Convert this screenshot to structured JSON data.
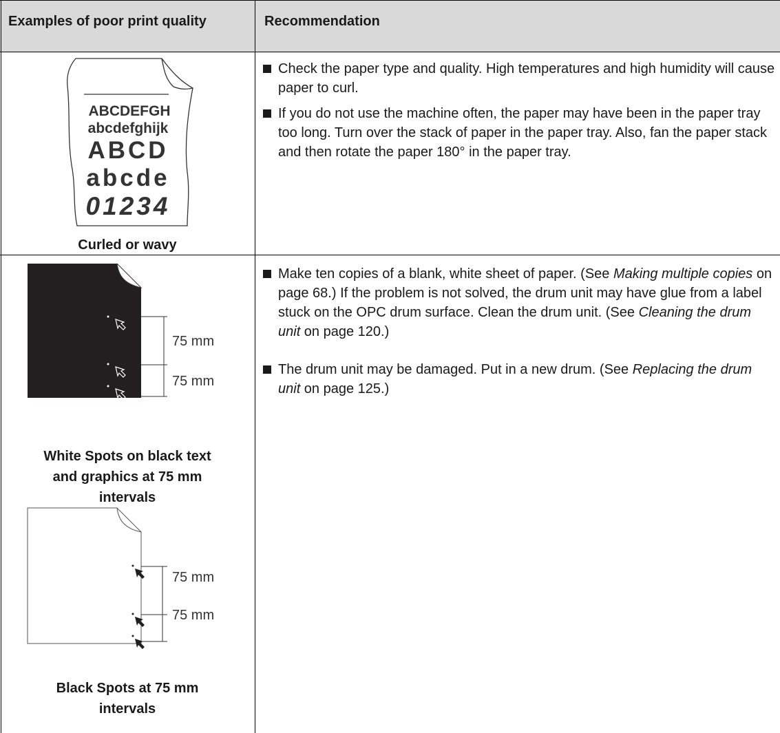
{
  "table": {
    "headers": [
      "Examples of poor print quality",
      "Recommendation"
    ],
    "rows": [
      {
        "examples": [
          {
            "sample_text": [
              "ABCDEFGH",
              "abcdefghijk",
              "ABCD",
              "abcde",
              "01234"
            ],
            "caption": "Curled or wavy"
          }
        ],
        "recommendations": [
          [
            {
              "text": "Check the paper type and quality. High temperatures and high humidity will cause paper to curl."
            }
          ],
          [
            {
              "text": "If you do not use the machine often, the paper may have been in the paper tray too long. Turn over the stack of paper in the paper tray. Also, fan the paper stack and then rotate the paper 180° in the paper tray."
            }
          ]
        ]
      },
      {
        "examples": [
          {
            "dimension_labels": [
              "75 mm",
              "75 mm"
            ],
            "caption": "White Spots on black text and graphics at 75 mm intervals"
          },
          {
            "dimension_labels": [
              "75 mm",
              "75 mm"
            ],
            "caption": "Black Spots at 75 mm intervals"
          }
        ],
        "recommendations": [
          [
            {
              "text": "Make ten copies of a blank, white sheet of paper. (See "
            },
            {
              "text": "Making multiple copies",
              "italic": true
            },
            {
              "text": " on page 68.) If the problem is not solved, the drum unit may have glue from a label stuck on the OPC drum surface. Clean the drum unit. (See "
            },
            {
              "text": "Cleaning the drum unit",
              "italic": true
            },
            {
              "text": " on page 120.)"
            }
          ],
          [
            {
              "text": "The drum unit may be damaged. Put in a new drum. (See "
            },
            {
              "text": "Replacing the drum unit",
              "italic": true
            },
            {
              "text": " on page 125.)"
            }
          ]
        ]
      }
    ]
  }
}
